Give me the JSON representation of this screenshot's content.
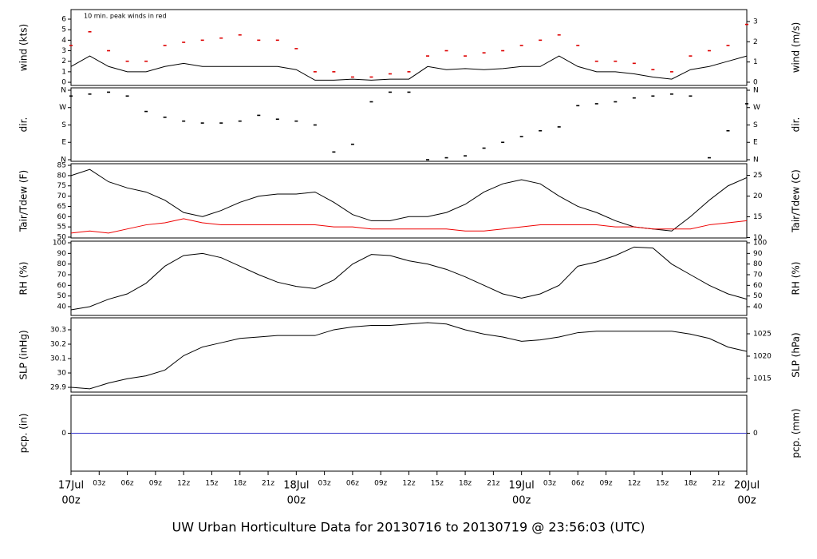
{
  "caption": "UW Urban Horticulture Data for 20130716  to  20130719 @ 23:56:03  (UTC)",
  "caption_color": "#2222dd",
  "chart_data": [
    {
      "type": "line",
      "ylabel": "wind (kts)",
      "y2label": "wind (m/s)",
      "annotation": "10 min. peak winds in red",
      "annotation_color": "#dd0000",
      "xlim": [
        0,
        72
      ],
      "ylim": [
        -0.3,
        6.91
      ],
      "yticks": [
        0,
        1,
        2,
        3,
        4,
        5,
        6
      ],
      "y2lim": [
        -0.16,
        3.59
      ],
      "y2ticks": [
        0,
        1,
        2,
        3
      ],
      "x": [
        0,
        2,
        4,
        6,
        8,
        10,
        12,
        14,
        16,
        18,
        20,
        22,
        24,
        26,
        28,
        30,
        32,
        34,
        36,
        38,
        40,
        42,
        44,
        46,
        48,
        50,
        52,
        54,
        56,
        58,
        60,
        62,
        64,
        66,
        68,
        70,
        72
      ],
      "series": [
        {
          "name": "wind",
          "color": "#000000",
          "style": "line",
          "values": [
            1.5,
            2.5,
            1.5,
            1,
            1,
            1.5,
            1.8,
            1.5,
            1.5,
            1.5,
            1.5,
            1.5,
            1.2,
            0.2,
            0.2,
            0.3,
            0.2,
            0.3,
            0.3,
            1.5,
            1.2,
            1.3,
            1.2,
            1.3,
            1.5,
            1.5,
            2.5,
            1.5,
            1,
            1,
            0.8,
            0.5,
            0.3,
            1.2,
            1.5,
            2,
            2.5
          ]
        },
        {
          "name": "peak",
          "color": "#dd0000",
          "style": "points",
          "values": [
            3.5,
            4.8,
            3,
            2,
            2,
            3.5,
            3.8,
            4,
            4.2,
            4.5,
            4,
            4,
            3.2,
            1,
            1,
            0.5,
            0.5,
            0.8,
            1,
            2.5,
            3,
            2.5,
            2.8,
            3,
            3.5,
            4,
            4.5,
            3.5,
            2,
            2,
            1.8,
            1.2,
            1,
            2.5,
            3,
            3.5,
            5.5
          ]
        }
      ]
    },
    {
      "type": "scatter",
      "ylabel": "dir.",
      "y2label": "dir.",
      "xlim": [
        0,
        72
      ],
      "ylim": [
        -8.3,
        372.4
      ],
      "yticks": [
        {
          "value": 0,
          "label": "N"
        },
        {
          "value": 90,
          "label": "E"
        },
        {
          "value": 180,
          "label": "S"
        },
        {
          "value": 270,
          "label": "W"
        },
        {
          "value": 360,
          "label": "N"
        }
      ],
      "y2lim": [
        -8.3,
        372.4
      ],
      "y2ticks": [
        {
          "value": 0,
          "label": "N"
        },
        {
          "value": 90,
          "label": "E"
        },
        {
          "value": 180,
          "label": "S"
        },
        {
          "value": 270,
          "label": "W"
        },
        {
          "value": 360,
          "label": "N"
        }
      ],
      "x": [
        0,
        2,
        4,
        6,
        8,
        10,
        12,
        14,
        16,
        18,
        20,
        22,
        24,
        26,
        28,
        30,
        32,
        34,
        36,
        38,
        40,
        42,
        44,
        46,
        48,
        50,
        52,
        54,
        56,
        58,
        60,
        62,
        64,
        66,
        68,
        70,
        72
      ],
      "series": [
        {
          "name": "dir",
          "color": "#000000",
          "style": "points",
          "values": [
            330,
            340,
            350,
            330,
            250,
            220,
            200,
            190,
            190,
            200,
            230,
            210,
            200,
            180,
            40,
            80,
            300,
            350,
            350,
            0,
            10,
            20,
            60,
            90,
            120,
            150,
            170,
            280,
            290,
            300,
            320,
            330,
            340,
            330,
            10,
            150,
            290
          ]
        }
      ]
    },
    {
      "type": "line",
      "ylabel": "Tair/Tdew (F)",
      "y2label": "Tair/Tdew (C)",
      "xlim": [
        0,
        72
      ],
      "ylim": [
        49.6,
        85.8
      ],
      "yticks": [
        50,
        55,
        60,
        65,
        70,
        75,
        80,
        85
      ],
      "y2lim": [
        9.9,
        27.8
      ],
      "y2ticks": [
        10,
        15,
        20,
        25
      ],
      "x": [
        0,
        2,
        4,
        6,
        8,
        10,
        12,
        14,
        16,
        18,
        20,
        22,
        24,
        26,
        28,
        30,
        32,
        34,
        36,
        38,
        40,
        42,
        44,
        46,
        48,
        50,
        52,
        54,
        56,
        58,
        60,
        62,
        64,
        66,
        68,
        70,
        72
      ],
      "series": [
        {
          "name": "Tair",
          "color": "#000000",
          "style": "line",
          "values": [
            80,
            83,
            77,
            74,
            72,
            68,
            62,
            60,
            63,
            67,
            70,
            71,
            71,
            72,
            67,
            61,
            58,
            58,
            60,
            60,
            62,
            66,
            72,
            76,
            78,
            76,
            70,
            65,
            62,
            58,
            55,
            54,
            53,
            60,
            68,
            75,
            79
          ]
        },
        {
          "name": "Tdew",
          "color": "#ee0000",
          "style": "line",
          "values": [
            52,
            53,
            52,
            54,
            56,
            57,
            59,
            57,
            56,
            56,
            56,
            56,
            56,
            56,
            55,
            55,
            54,
            54,
            54,
            54,
            54,
            53,
            53,
            54,
            55,
            56,
            56,
            56,
            56,
            55,
            55,
            54,
            54,
            54,
            56,
            57,
            58
          ]
        }
      ]
    },
    {
      "type": "line",
      "ylabel": "RH (%)",
      "y2label": "RH (%)",
      "xlim": [
        0,
        72
      ],
      "ylim": [
        31.75,
        101.5
      ],
      "yticks": [
        40,
        50,
        60,
        70,
        80,
        90,
        100
      ],
      "y2lim": [
        31.75,
        101.5
      ],
      "y2ticks": [
        40,
        50,
        60,
        70,
        80,
        90,
        100
      ],
      "x": [
        0,
        2,
        4,
        6,
        8,
        10,
        12,
        14,
        16,
        18,
        20,
        22,
        24,
        26,
        28,
        30,
        32,
        34,
        36,
        38,
        40,
        42,
        44,
        46,
        48,
        50,
        52,
        54,
        56,
        58,
        60,
        62,
        64,
        66,
        68,
        70,
        72
      ],
      "series": [
        {
          "name": "RH",
          "color": "#000000",
          "style": "line",
          "values": [
            37,
            40,
            47,
            52,
            62,
            78,
            88,
            90,
            86,
            78,
            70,
            63,
            59,
            57,
            65,
            80,
            89,
            88,
            83,
            80,
            75,
            68,
            60,
            52,
            48,
            52,
            60,
            78,
            82,
            88,
            96,
            95,
            80,
            70,
            60,
            52,
            47
          ]
        }
      ]
    },
    {
      "type": "line",
      "ylabel": "SLP (inHg)",
      "y2label": "SLP (hPa)",
      "xlim": [
        0,
        72
      ],
      "ylim": [
        29.867,
        30.383
      ],
      "yticks": [
        29.9,
        30.0,
        30.1,
        30.2,
        30.3
      ],
      "y2lim": [
        1011.96,
        1028.57
      ],
      "y2ticks": [
        1015,
        1020,
        1025
      ],
      "x": [
        0,
        2,
        4,
        6,
        8,
        10,
        12,
        14,
        16,
        18,
        20,
        22,
        24,
        26,
        28,
        30,
        32,
        34,
        36,
        38,
        40,
        42,
        44,
        46,
        48,
        50,
        52,
        54,
        56,
        58,
        60,
        62,
        64,
        66,
        68,
        70,
        72
      ],
      "series": [
        {
          "name": "SLP",
          "color": "#000000",
          "style": "line",
          "values": [
            29.9,
            29.89,
            29.93,
            29.96,
            29.98,
            30.02,
            30.12,
            30.18,
            30.21,
            30.24,
            30.25,
            30.26,
            30.26,
            30.26,
            30.3,
            30.32,
            30.33,
            30.33,
            30.34,
            30.35,
            30.34,
            30.3,
            30.27,
            30.25,
            30.22,
            30.23,
            30.25,
            30.28,
            30.29,
            30.29,
            30.29,
            30.29,
            30.29,
            30.27,
            30.24,
            30.18,
            30.15
          ]
        }
      ]
    },
    {
      "type": "line",
      "ylabel": "pcp. (in)",
      "y2label": "pcp. (mm)",
      "xlim": [
        0,
        72
      ],
      "ylim": [
        -1,
        1
      ],
      "yticks": [
        0
      ],
      "y2lim": [
        -1,
        1
      ],
      "y2ticks": [
        0
      ],
      "x": [
        0,
        72
      ],
      "series": [
        {
          "name": "pcp",
          "color": "#3333cc",
          "style": "line",
          "values": [
            0,
            0
          ]
        }
      ],
      "day_color": "#dd0000",
      "day_labels": [
        {
          "value": 0,
          "label": "17Jul"
        },
        {
          "value": 24,
          "label": "18Jul"
        },
        {
          "value": 48,
          "label": "19Jul"
        },
        {
          "value": 72,
          "label": "20Jul"
        }
      ],
      "xticks": [
        {
          "value": 0,
          "label": "00z"
        },
        {
          "value": 3,
          "label": "03z"
        },
        {
          "value": 6,
          "label": "06z"
        },
        {
          "value": 9,
          "label": "09z"
        },
        {
          "value": 12,
          "label": "12z"
        },
        {
          "value": 15,
          "label": "15z"
        },
        {
          "value": 18,
          "label": "18z"
        },
        {
          "value": 21,
          "label": "21z"
        },
        {
          "value": 24,
          "label": "00z"
        },
        {
          "value": 27,
          "label": "03z"
        },
        {
          "value": 30,
          "label": "06z"
        },
        {
          "value": 33,
          "label": "09z"
        },
        {
          "value": 36,
          "label": "12z"
        },
        {
          "value": 39,
          "label": "15z"
        },
        {
          "value": 42,
          "label": "18z"
        },
        {
          "value": 45,
          "label": "21z"
        },
        {
          "value": 48,
          "label": "00z"
        },
        {
          "value": 51,
          "label": "03z"
        },
        {
          "value": 54,
          "label": "06z"
        },
        {
          "value": 57,
          "label": "09z"
        },
        {
          "value": 60,
          "label": "12z"
        },
        {
          "value": 63,
          "label": "15z"
        },
        {
          "value": 66,
          "label": "18z"
        },
        {
          "value": 69,
          "label": "21z"
        },
        {
          "value": 72,
          "label": "00z"
        }
      ]
    }
  ]
}
